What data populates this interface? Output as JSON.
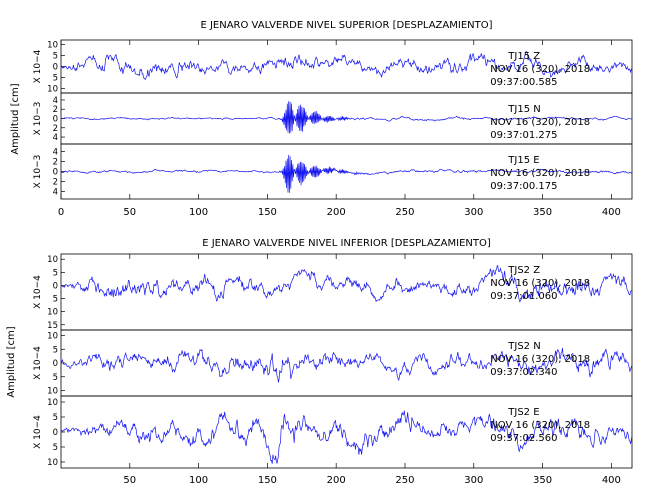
{
  "chart_data": [
    {
      "type": "line",
      "title": "E JENARO VALVERDE NIVEL SUPERIOR [DESPLAZAMIENTO]",
      "ylabel": "Amplitud [cm]",
      "xlim": [
        0,
        415
      ],
      "x_ticks": [
        0,
        50,
        100,
        150,
        200,
        250,
        300,
        350,
        400
      ],
      "show_x_tick_labels": true,
      "series": [
        {
          "name": "TJ15  Z",
          "scale_label": "X 10−4",
          "date": "NOV 16 (320), 2018",
          "time": "09:37:00.585",
          "ylim": [
            -12,
            12
          ],
          "y_ticks": [
            10,
            5,
            0,
            -5,
            -10
          ],
          "y_tick_labels": [
            "10",
            "5",
            "0",
            "5",
            "10"
          ],
          "envelope": [
            [
              0,
              3
            ],
            [
              10,
              4
            ],
            [
              30,
              6
            ],
            [
              60,
              6
            ],
            [
              100,
              5
            ],
            [
              140,
              4
            ],
            [
              160,
              5
            ],
            [
              165,
              7
            ],
            [
              180,
              5
            ],
            [
              200,
              4
            ],
            [
              250,
              5
            ],
            [
              300,
              6
            ],
            [
              340,
              5
            ],
            [
              380,
              4
            ],
            [
              415,
              3
            ]
          ],
          "events": []
        },
        {
          "name": "TJ15  N",
          "scale_label": "X 10−3",
          "date": "NOV 16 (320), 2018",
          "time": "09:37:01.275",
          "ylim": [
            -5.5,
            5.5
          ],
          "y_ticks": [
            4,
            2,
            0,
            -2,
            -4
          ],
          "y_tick_labels": [
            "4",
            "2",
            "0",
            "2",
            "4"
          ],
          "envelope": [
            [
              0,
              0.3
            ],
            [
              150,
              0.3
            ],
            [
              160,
              0.5
            ],
            [
              415,
              0.4
            ]
          ],
          "events": [
            {
              "start": 158,
              "peak": 168,
              "end": 212,
              "amp": 4.8,
              "freq": 0.95
            }
          ]
        },
        {
          "name": "TJ15  E",
          "scale_label": "X 10−3",
          "date": "NOV 16 (320), 2018",
          "time": "09:37:00.175",
          "ylim": [
            -5.5,
            5.5
          ],
          "y_ticks": [
            4,
            2,
            0,
            -2,
            -4
          ],
          "y_tick_labels": [
            "4",
            "2",
            "0",
            "2",
            "4"
          ],
          "envelope": [
            [
              0,
              0.35
            ],
            [
              150,
              0.35
            ],
            [
              160,
              0.5
            ],
            [
              415,
              0.4
            ]
          ],
          "events": [
            {
              "start": 158,
              "peak": 166,
              "end": 215,
              "amp": 4.2,
              "freq": 0.95
            }
          ]
        }
      ]
    },
    {
      "type": "line",
      "title": "E JENARO VALVERDE NIVEL INFERIOR [DESPLAZAMIENTO]",
      "ylabel": "Amplitud [cm]",
      "xlim": [
        0,
        415
      ],
      "x_ticks": [
        50,
        100,
        150,
        200,
        250,
        300,
        350,
        400
      ],
      "show_x_tick_labels": true,
      "series": [
        {
          "name": "TJS2  Z",
          "scale_label": "X 10−4",
          "date": "NOV 16 (320), 2018",
          "time": "09:37:01.060",
          "ylim": [
            -17,
            12
          ],
          "y_ticks": [
            10,
            5,
            0,
            -5,
            -10,
            -15
          ],
          "y_tick_labels": [
            "10",
            "5",
            "0",
            "5",
            "10",
            "15"
          ],
          "envelope": [
            [
              0,
              2
            ],
            [
              20,
              4
            ],
            [
              50,
              6
            ],
            [
              100,
              6
            ],
            [
              150,
              5
            ],
            [
              200,
              5
            ],
            [
              250,
              4
            ],
            [
              300,
              5
            ],
            [
              330,
              6
            ],
            [
              370,
              6
            ],
            [
              400,
              6
            ],
            [
              415,
              4
            ]
          ],
          "events": []
        },
        {
          "name": "TJS2  N",
          "scale_label": "X 10−4",
          "date": "NOV 16 (320), 2018",
          "time": "09:37:02.340",
          "ylim": [
            -12,
            12
          ],
          "y_ticks": [
            10,
            5,
            0,
            -5,
            -10
          ],
          "y_tick_labels": [
            "10",
            "5",
            "0",
            "5",
            "10"
          ],
          "envelope": [
            [
              0,
              2
            ],
            [
              30,
              4
            ],
            [
              100,
              5
            ],
            [
              150,
              6
            ],
            [
              160,
              10
            ],
            [
              175,
              5
            ],
            [
              250,
              5
            ],
            [
              300,
              4
            ],
            [
              350,
              5
            ],
            [
              400,
              6
            ],
            [
              415,
              5
            ]
          ],
          "events": []
        },
        {
          "name": "TJS2  E",
          "scale_label": "X 10−4",
          "date": "NOV 16 (320), 2018",
          "time": "09:37:02.560",
          "ylim": [
            -12,
            12
          ],
          "y_ticks": [
            10,
            5,
            0,
            -5,
            -10
          ],
          "y_tick_labels": [
            "10",
            "5",
            "0",
            "5",
            "10"
          ],
          "envelope": [
            [
              0,
              2
            ],
            [
              30,
              4
            ],
            [
              100,
              5
            ],
            [
              150,
              7
            ],
            [
              160,
              9
            ],
            [
              180,
              5
            ],
            [
              245,
              6
            ],
            [
              250,
              9
            ],
            [
              260,
              5
            ],
            [
              350,
              5
            ],
            [
              400,
              5
            ],
            [
              415,
              4
            ]
          ],
          "events": []
        }
      ]
    }
  ]
}
